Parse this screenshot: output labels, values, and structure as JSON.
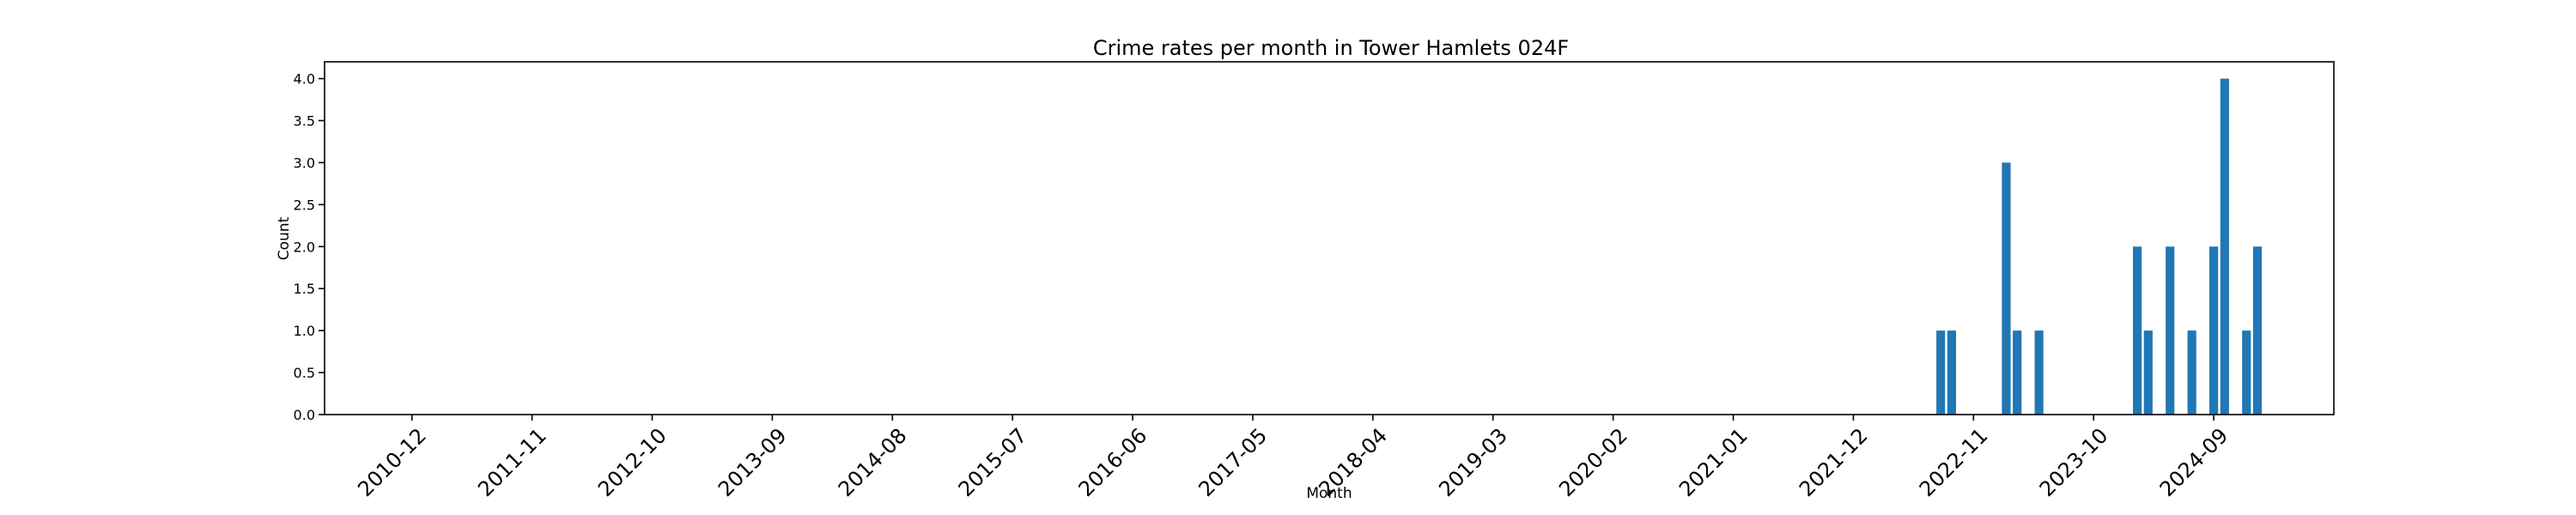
{
  "chart_data": {
    "type": "bar",
    "title": "Crime rates per month in Tower Hamlets 024F",
    "xlabel": "Month",
    "ylabel": "Count",
    "ylim": [
      0,
      4.2
    ],
    "yticks": [
      "0.0",
      "0.5",
      "1.0",
      "1.5",
      "2.0",
      "2.5",
      "3.0",
      "3.5",
      "4.0"
    ],
    "xticks": [
      "2010-12",
      "2011-11",
      "2012-10",
      "2013-09",
      "2014-08",
      "2015-07",
      "2016-06",
      "2017-05",
      "2018-04",
      "2019-03",
      "2020-02",
      "2021-01",
      "2021-12",
      "2022-11",
      "2023-10",
      "2024-09"
    ],
    "x_range": [
      "2010-04",
      "2025-08"
    ],
    "grid": false,
    "bar_color": "#1f77b4",
    "data": [
      {
        "x": "2022-08",
        "y": 1
      },
      {
        "x": "2022-09",
        "y": 1
      },
      {
        "x": "2023-02",
        "y": 3
      },
      {
        "x": "2023-03",
        "y": 1
      },
      {
        "x": "2023-05",
        "y": 1
      },
      {
        "x": "2024-02",
        "y": 2
      },
      {
        "x": "2024-03",
        "y": 1
      },
      {
        "x": "2024-05",
        "y": 2
      },
      {
        "x": "2024-07",
        "y": 1
      },
      {
        "x": "2024-09",
        "y": 2
      },
      {
        "x": "2024-10",
        "y": 4
      },
      {
        "x": "2024-12",
        "y": 1
      },
      {
        "x": "2025-01",
        "y": 2
      }
    ]
  }
}
